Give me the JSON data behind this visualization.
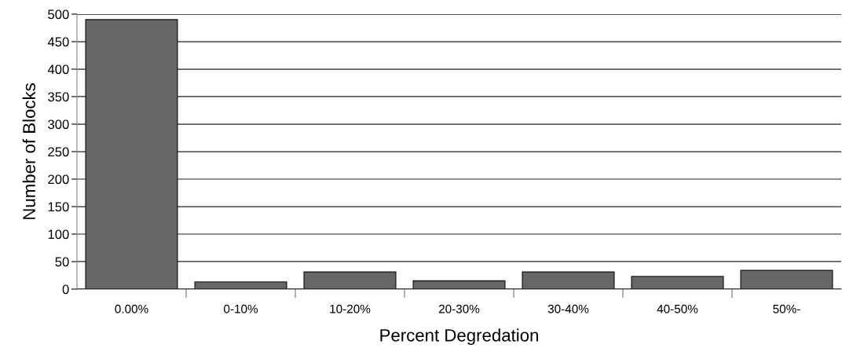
{
  "chart_data": {
    "type": "bar",
    "xlabel": "Percent Degredation",
    "ylabel": "Number of Blocks",
    "categories": [
      "0.00%",
      "0-10%",
      "10-20%",
      "20-30%",
      "30-40%",
      "40-50%",
      "50%-"
    ],
    "values": [
      490,
      13,
      31,
      15,
      31,
      23,
      34
    ],
    "color": "#666666",
    "ylim": [
      0,
      500
    ],
    "yticks": [
      0,
      50,
      100,
      150,
      200,
      250,
      300,
      350,
      400,
      450,
      500
    ],
    "grid": "y",
    "legend": false
  }
}
